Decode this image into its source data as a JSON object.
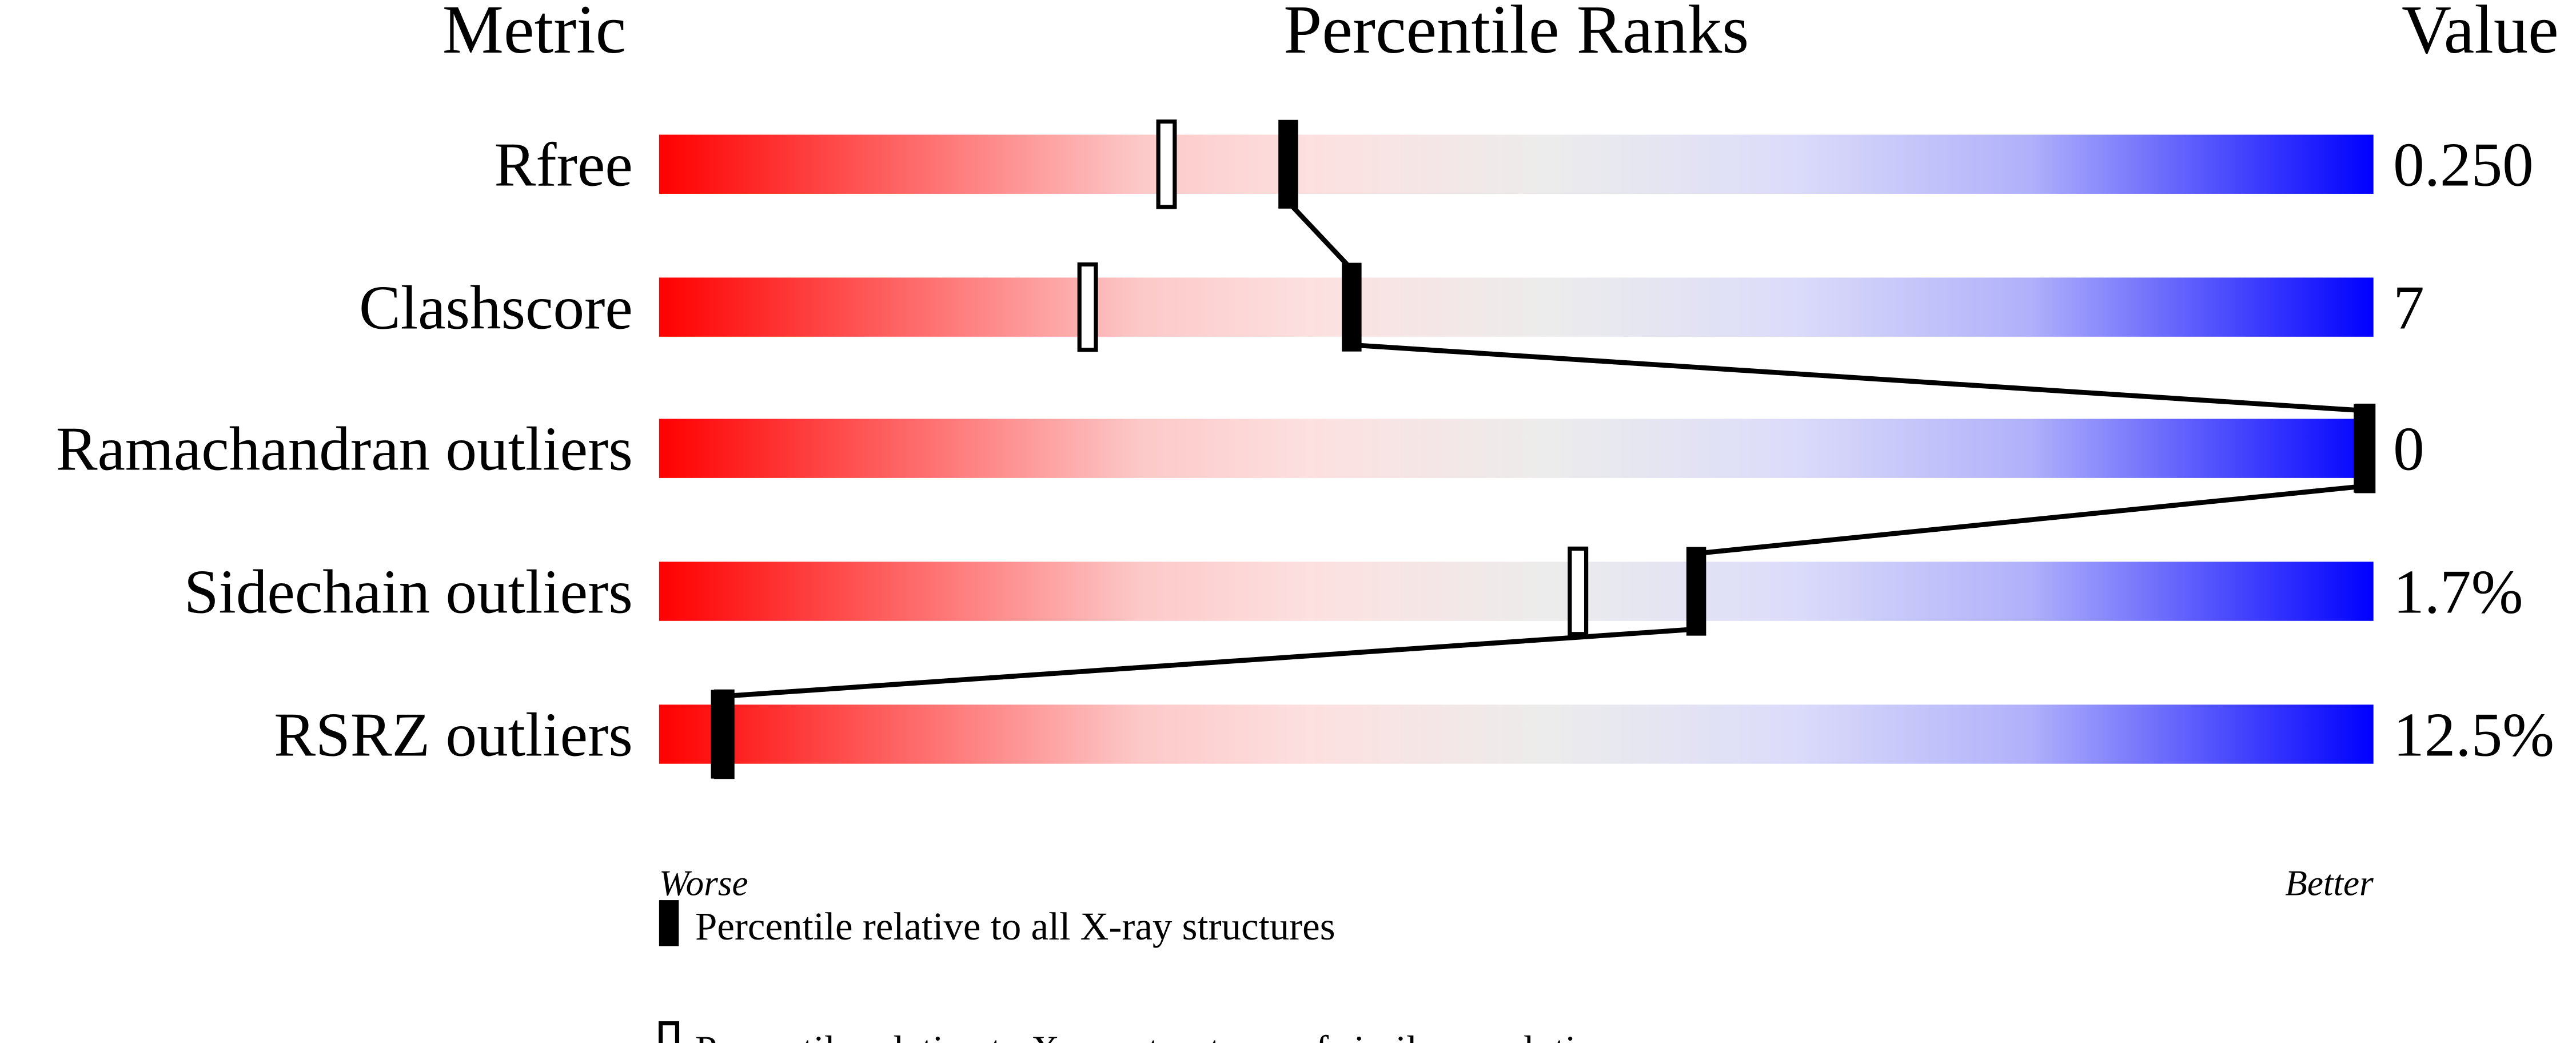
{
  "chart_data": {
    "type": "percentile-ranks",
    "headers": {
      "metric": "Metric",
      "ranks": "Percentile Ranks",
      "value": "Value"
    },
    "xlim": [
      0,
      100
    ],
    "axis_labels": {
      "left": "Worse",
      "right": "Better"
    },
    "rows": [
      {
        "metric": "Rfree",
        "value": "0.250",
        "percentile_all": 36.7,
        "percentile_similar": 29.6
      },
      {
        "metric": "Clashscore",
        "value": "7",
        "percentile_all": 40.4,
        "percentile_similar": 25.0
      },
      {
        "metric": "Ramachandran outliers",
        "value": "0",
        "percentile_all": 100,
        "percentile_similar": 100
      },
      {
        "metric": "Sidechain outliers",
        "value": "1.7%",
        "percentile_all": 60.5,
        "percentile_similar": 53.6
      },
      {
        "metric": "RSRZ outliers",
        "value": "12.5%",
        "percentile_all": 3.6,
        "percentile_similar": 3.8
      }
    ],
    "legend": {
      "filled": "Percentile relative to all X-ray structures",
      "open": "Percentile relative to X-ray structures of similar resolution"
    },
    "gradient_colors": [
      "#ff0000",
      "#fdd8d8",
      "#eeeeee",
      "#dcdcfa",
      "#0000ff"
    ]
  }
}
